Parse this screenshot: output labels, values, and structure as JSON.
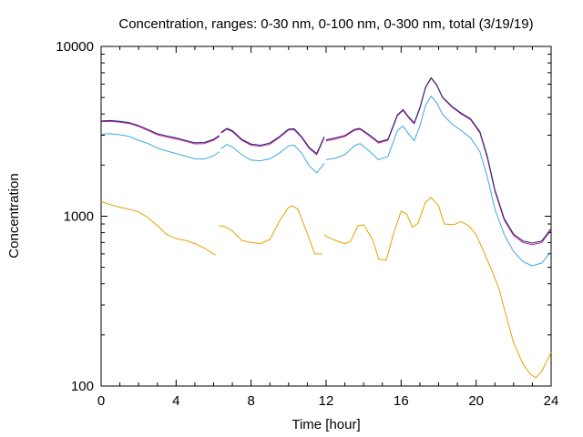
{
  "chart_data": {
    "type": "line",
    "title": "Concentration, ranges: 0-30 nm, 0-100 nm, 0-300 nm, total (3/19/19)",
    "xlabel": "Time [hour]",
    "ylabel": "Concentration",
    "xlim": [
      0,
      24
    ],
    "ylim": [
      100,
      10000
    ],
    "yscale": "log",
    "grid": false,
    "legend": "none",
    "xticks": [
      0,
      4,
      8,
      12,
      16,
      20,
      24
    ],
    "yticks": [
      100,
      1000,
      10000
    ],
    "ytick_labels": [
      "100",
      "1000",
      "10000"
    ],
    "series": [
      {
        "color": "#e8a000",
        "segments": [
          [
            [
              0,
              1220
            ],
            [
              0.5,
              1170
            ],
            [
              1,
              1130
            ],
            [
              1.5,
              1100
            ],
            [
              2,
              1060
            ],
            [
              2.5,
              980
            ],
            [
              3,
              880
            ],
            [
              3.5,
              780
            ],
            [
              4,
              740
            ],
            [
              4.5,
              720
            ],
            [
              5,
              690
            ],
            [
              5.5,
              650
            ],
            [
              6,
              600
            ],
            [
              6.1,
              590
            ]
          ],
          [
            [
              6.3,
              880
            ],
            [
              6.6,
              870
            ],
            [
              7,
              820
            ],
            [
              7.5,
              720
            ],
            [
              8,
              700
            ],
            [
              8.5,
              690
            ],
            [
              9,
              730
            ],
            [
              9.5,
              930
            ],
            [
              10,
              1130
            ],
            [
              10.2,
              1150
            ],
            [
              10.5,
              1100
            ],
            [
              11,
              790
            ],
            [
              11.4,
              600
            ],
            [
              11.8,
              600
            ]
          ],
          [
            [
              11.9,
              780
            ],
            [
              12,
              760
            ],
            [
              12.5,
              720
            ],
            [
              13,
              690
            ],
            [
              13.3,
              710
            ],
            [
              13.7,
              880
            ],
            [
              14,
              890
            ],
            [
              14.5,
              720
            ],
            [
              14.8,
              560
            ],
            [
              15.2,
              550
            ],
            [
              15.6,
              790
            ],
            [
              16,
              1070
            ],
            [
              16.3,
              1030
            ],
            [
              16.6,
              860
            ],
            [
              16.9,
              910
            ],
            [
              17.3,
              1210
            ],
            [
              17.6,
              1290
            ],
            [
              18,
              1150
            ],
            [
              18.3,
              900
            ],
            [
              18.8,
              890
            ],
            [
              19.2,
              930
            ],
            [
              19.6,
              880
            ],
            [
              20,
              780
            ],
            [
              20.4,
              620
            ],
            [
              20.8,
              490
            ],
            [
              21.2,
              380
            ],
            [
              21.6,
              260
            ],
            [
              22,
              180
            ],
            [
              22.5,
              135
            ],
            [
              22.9,
              117
            ],
            [
              23.2,
              112
            ],
            [
              23.5,
              122
            ],
            [
              24,
              158
            ]
          ]
        ]
      },
      {
        "color": "#40a8e0",
        "segments": [
          [
            [
              0,
              3050
            ],
            [
              0.5,
              3060
            ],
            [
              1,
              3020
            ],
            [
              1.5,
              2950
            ],
            [
              2,
              2800
            ],
            [
              2.5,
              2680
            ],
            [
              3,
              2520
            ],
            [
              3.5,
              2420
            ],
            [
              4,
              2340
            ],
            [
              4.5,
              2260
            ],
            [
              5,
              2180
            ],
            [
              5.5,
              2170
            ],
            [
              6,
              2270
            ],
            [
              6.3,
              2400
            ]
          ],
          [
            [
              6.4,
              2500
            ],
            [
              6.7,
              2650
            ],
            [
              7,
              2560
            ],
            [
              7.5,
              2300
            ],
            [
              8,
              2140
            ],
            [
              8.5,
              2120
            ],
            [
              9,
              2180
            ],
            [
              9.5,
              2350
            ],
            [
              10,
              2600
            ],
            [
              10.3,
              2620
            ],
            [
              10.7,
              2350
            ],
            [
              11.1,
              1980
            ],
            [
              11.5,
              1800
            ],
            [
              11.9,
              2050
            ]
          ],
          [
            [
              12,
              2150
            ],
            [
              12.5,
              2200
            ],
            [
              13,
              2300
            ],
            [
              13.5,
              2600
            ],
            [
              13.8,
              2680
            ],
            [
              14.3,
              2420
            ],
            [
              14.8,
              2150
            ],
            [
              15.3,
              2250
            ],
            [
              15.8,
              3200
            ],
            [
              16.1,
              3400
            ],
            [
              16.4,
              3050
            ],
            [
              16.7,
              2780
            ],
            [
              17,
              3400
            ],
            [
              17.3,
              4500
            ],
            [
              17.6,
              5100
            ],
            [
              17.9,
              4650
            ],
            [
              18.2,
              4000
            ],
            [
              18.7,
              3500
            ],
            [
              19.2,
              3200
            ],
            [
              19.7,
              2900
            ],
            [
              20.2,
              2400
            ],
            [
              20.6,
              1700
            ],
            [
              21,
              1100
            ],
            [
              21.5,
              780
            ],
            [
              22,
              620
            ],
            [
              22.5,
              540
            ],
            [
              23,
              510
            ],
            [
              23.5,
              530
            ],
            [
              24,
              620
            ]
          ]
        ]
      },
      {
        "color": "#d0209a",
        "segments": [
          [
            [
              0,
              3600
            ],
            [
              0.5,
              3620
            ],
            [
              1,
              3580
            ],
            [
              1.5,
              3520
            ],
            [
              2,
              3380
            ],
            [
              2.5,
              3200
            ],
            [
              3,
              3020
            ],
            [
              3.5,
              2930
            ],
            [
              4,
              2850
            ],
            [
              4.5,
              2760
            ],
            [
              5,
              2670
            ],
            [
              5.5,
              2680
            ],
            [
              6,
              2800
            ],
            [
              6.3,
              2950
            ]
          ],
          [
            [
              6.4,
              3080
            ],
            [
              6.7,
              3250
            ],
            [
              7,
              3150
            ],
            [
              7.5,
              2800
            ],
            [
              8,
              2620
            ],
            [
              8.5,
              2580
            ],
            [
              9,
              2660
            ],
            [
              9.5,
              2900
            ],
            [
              10,
              3220
            ],
            [
              10.3,
              3230
            ],
            [
              10.7,
              2900
            ],
            [
              11.1,
              2500
            ],
            [
              11.5,
              2300
            ],
            [
              11.9,
              2900
            ]
          ],
          [
            [
              12,
              2780
            ],
            [
              12.5,
              2850
            ],
            [
              13,
              2950
            ],
            [
              13.5,
              3200
            ],
            [
              13.8,
              3250
            ],
            [
              14.3,
              2980
            ],
            [
              14.8,
              2700
            ],
            [
              15.3,
              2800
            ],
            [
              15.8,
              3900
            ],
            [
              16.1,
              4200
            ],
            [
              16.4,
              3800
            ],
            [
              16.7,
              3500
            ],
            [
              17,
              4300
            ],
            [
              17.3,
              5700
            ],
            [
              17.6,
              6500
            ],
            [
              17.9,
              5900
            ],
            [
              18.2,
              5000
            ],
            [
              18.7,
              4400
            ],
            [
              19.2,
              4000
            ],
            [
              19.7,
              3700
            ],
            [
              20.2,
              3100
            ],
            [
              20.6,
              2200
            ],
            [
              21,
              1400
            ],
            [
              21.5,
              950
            ],
            [
              22,
              770
            ],
            [
              22.5,
              700
            ],
            [
              23,
              680
            ],
            [
              23.5,
              700
            ],
            [
              24,
              830
            ]
          ]
        ]
      },
      {
        "color": "#1a2a6c",
        "segments": [
          [
            [
              0,
              3640
            ],
            [
              0.5,
              3660
            ],
            [
              1,
              3620
            ],
            [
              1.5,
              3560
            ],
            [
              2,
              3420
            ],
            [
              2.5,
              3240
            ],
            [
              3,
              3060
            ],
            [
              3.5,
              2970
            ],
            [
              4,
              2890
            ],
            [
              4.5,
              2800
            ],
            [
              5,
              2710
            ],
            [
              5.5,
              2720
            ],
            [
              6,
              2840
            ],
            [
              6.3,
              2990
            ]
          ],
          [
            [
              6.4,
              3120
            ],
            [
              6.7,
              3290
            ],
            [
              7,
              3190
            ],
            [
              7.5,
              2840
            ],
            [
              8,
              2660
            ],
            [
              8.5,
              2620
            ],
            [
              9,
              2700
            ],
            [
              9.5,
              2940
            ],
            [
              10,
              3260
            ],
            [
              10.3,
              3270
            ],
            [
              10.7,
              2940
            ],
            [
              11.1,
              2540
            ],
            [
              11.5,
              2340
            ],
            [
              11.9,
              2940
            ]
          ],
          [
            [
              12,
              2820
            ],
            [
              12.5,
              2890
            ],
            [
              13,
              2990
            ],
            [
              13.5,
              3240
            ],
            [
              13.8,
              3290
            ],
            [
              14.3,
              3020
            ],
            [
              14.8,
              2740
            ],
            [
              15.3,
              2840
            ],
            [
              15.8,
              3950
            ],
            [
              16.1,
              4250
            ],
            [
              16.4,
              3850
            ],
            [
              16.7,
              3550
            ],
            [
              17,
              4350
            ],
            [
              17.3,
              5750
            ],
            [
              17.6,
              6550
            ],
            [
              17.9,
              5950
            ],
            [
              18.2,
              5050
            ],
            [
              18.7,
              4450
            ],
            [
              19.2,
              4050
            ],
            [
              19.7,
              3750
            ],
            [
              20.2,
              3150
            ],
            [
              20.6,
              2250
            ],
            [
              21,
              1430
            ],
            [
              21.5,
              970
            ],
            [
              22,
              785
            ],
            [
              22.5,
              715
            ],
            [
              23,
              695
            ],
            [
              23.5,
              715
            ],
            [
              24,
              845
            ]
          ]
        ]
      }
    ]
  }
}
